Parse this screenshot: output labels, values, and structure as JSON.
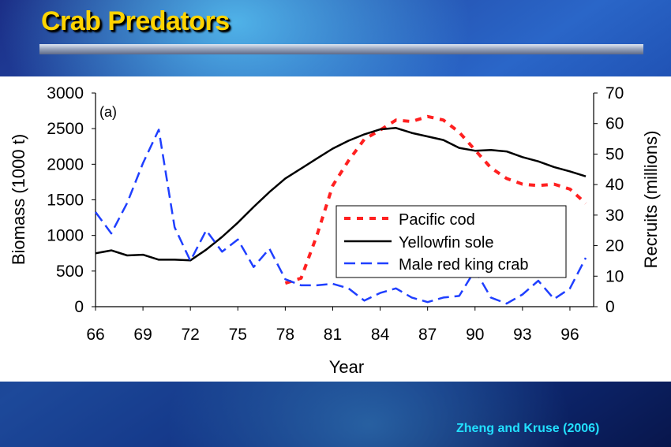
{
  "slide": {
    "title": "Crab Predators",
    "citation": "Zheng and Kruse (2006)"
  },
  "colors": {
    "title": "#ffd400",
    "citation": "#22e0ff",
    "pacific_cod": "#ff2020",
    "yellowfin_sole": "#000000",
    "male_red_king_crab": "#1f3fff"
  },
  "chart_data": {
    "type": "line",
    "panel_label": "(a)",
    "xlabel": "Year",
    "ylabel_left": "Biomass (1000 t)",
    "ylabel_right": "Recruits (millions)",
    "xlim": [
      66,
      97.5
    ],
    "ylim_left": [
      0,
      3000
    ],
    "ylim_right": [
      0,
      70
    ],
    "x_ticks": [
      66,
      69,
      72,
      75,
      78,
      81,
      84,
      87,
      90,
      93,
      96
    ],
    "y_ticks_left": [
      0,
      500,
      1000,
      1500,
      2000,
      2500,
      3000
    ],
    "y_ticks_right": [
      0,
      10,
      20,
      30,
      40,
      50,
      60,
      70
    ],
    "grid": false,
    "legend_position": "center-right",
    "series": [
      {
        "name": "Pacific cod",
        "axis": "left",
        "style": "dotted",
        "color": "#ff2020",
        "x": [
          78,
          79,
          80,
          81,
          82,
          83,
          84,
          85,
          86,
          87,
          88,
          89,
          90,
          91,
          92,
          93,
          94,
          95,
          96,
          97
        ],
        "y": [
          330,
          400,
          1000,
          1700,
          2050,
          2350,
          2480,
          2620,
          2600,
          2670,
          2620,
          2450,
          2200,
          1950,
          1800,
          1720,
          1700,
          1720,
          1650,
          1450
        ]
      },
      {
        "name": "Yellowfin sole",
        "axis": "left",
        "style": "solid",
        "color": "#000000",
        "x": [
          66,
          67,
          68,
          69,
          70,
          71,
          72,
          73,
          74,
          75,
          76,
          77,
          78,
          79,
          80,
          81,
          82,
          83,
          84,
          85,
          86,
          87,
          88,
          89,
          90,
          91,
          92,
          93,
          94,
          95,
          96,
          97
        ],
        "y": [
          750,
          790,
          720,
          730,
          660,
          660,
          650,
          800,
          980,
          1180,
          1400,
          1610,
          1800,
          1940,
          2080,
          2220,
          2330,
          2420,
          2490,
          2510,
          2440,
          2390,
          2340,
          2230,
          2190,
          2200,
          2180,
          2100,
          2040,
          1960,
          1900,
          1830
        ]
      },
      {
        "name": "Male red king crab",
        "axis": "right",
        "style": "dashed",
        "color": "#1f3fff",
        "x": [
          66,
          67,
          68,
          69,
          70,
          71,
          72,
          73,
          74,
          75,
          76,
          77,
          78,
          79,
          80,
          81,
          82,
          83,
          84,
          85,
          86,
          87,
          88,
          89,
          90,
          91,
          92,
          93,
          94,
          95,
          96,
          97
        ],
        "y": [
          31,
          24,
          34,
          47,
          58,
          26,
          15,
          25,
          18,
          22,
          13,
          19,
          9,
          7,
          7,
          7.5,
          6,
          2,
          4.5,
          6,
          3,
          1.5,
          3,
          3.5,
          12,
          3,
          1,
          4,
          8.5,
          2.5,
          6,
          16
        ]
      }
    ]
  }
}
